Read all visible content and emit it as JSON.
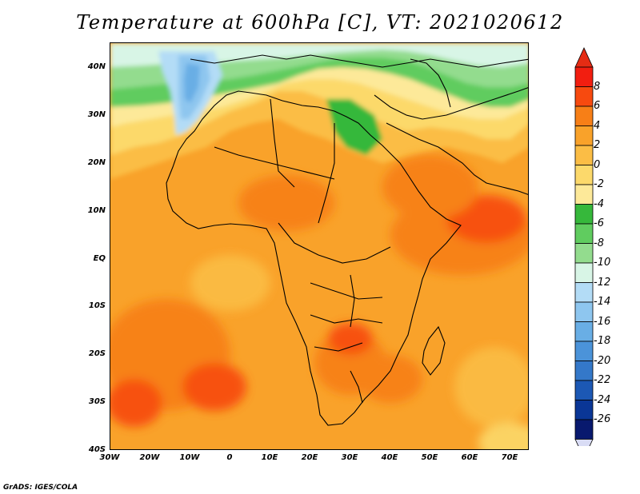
{
  "title": "Temperature at 600hPa [C], VT: 2021020612",
  "credit": "GrADS: IGES/COLA",
  "lat_labels": [
    "40N",
    "30N",
    "20N",
    "10N",
    "EQ",
    "10S",
    "20S",
    "30S",
    "40S"
  ],
  "lon_labels": [
    "30W",
    "20W",
    "10W",
    "0",
    "10E",
    "20E",
    "30E",
    "40E",
    "50E",
    "60E",
    "70E"
  ],
  "colorbar": {
    "labels": [
      "8",
      "6",
      "4",
      "2",
      "0",
      "-2",
      "-4",
      "-6",
      "-8",
      "-10",
      "-12",
      "-14",
      "-16",
      "-18",
      "-20",
      "-22",
      "-24",
      "-26"
    ],
    "colors": [
      "#f21e10",
      "#f74a0f",
      "#f77f17",
      "#f9a22a",
      "#fbbd45",
      "#fcd96b",
      "#fde999",
      "#36b83b",
      "#60cc5f",
      "#93dc8e",
      "#d8f5e6",
      "#b3dcf6",
      "#8ec6ef",
      "#69aee5",
      "#4b93d9",
      "#3478c9",
      "#1c58b4",
      "#0a3696",
      "#08196e"
    ],
    "over_color": "#e52c14",
    "under_color": "#d9dcf5"
  },
  "map": {
    "lon_range": [
      -30,
      75
    ],
    "lat_range": [
      -40,
      45
    ],
    "field": "Temperature at 600hPa",
    "units": "C"
  }
}
